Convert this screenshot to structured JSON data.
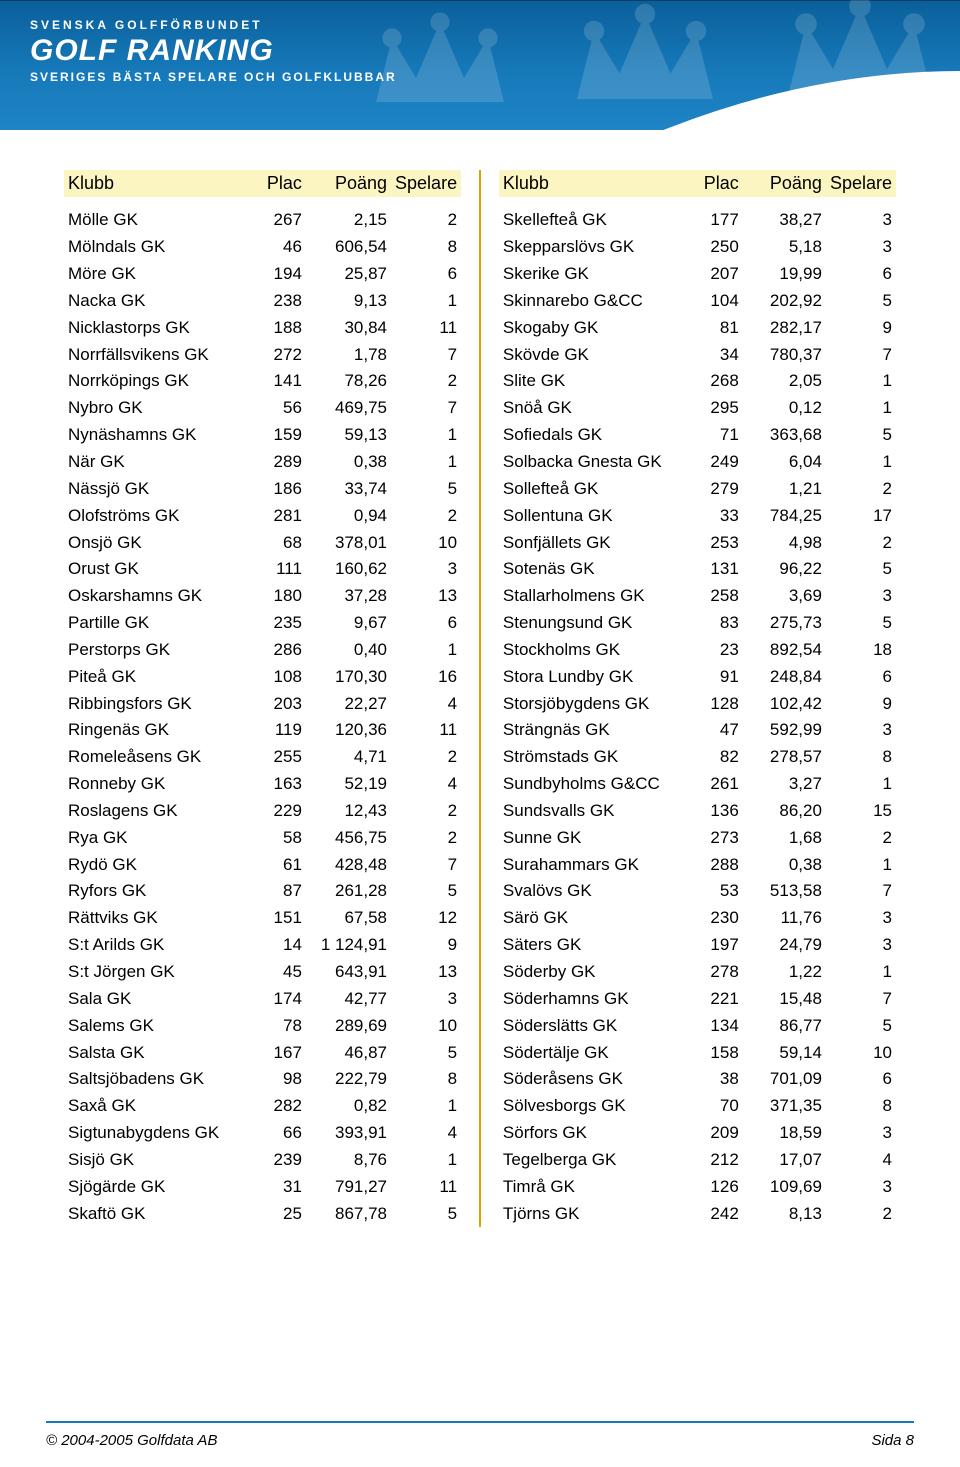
{
  "banner": {
    "subtitle_top": "SVENSKA GOLFFÖRBUNDET",
    "title": "GOLF RANKING",
    "subtitle_bottom": "SVERIGES BÄSTA SPELARE OCH GOLFKLUBBAR"
  },
  "headers": {
    "klubb": "Klubb",
    "plac": "Plac",
    "poang": "Poäng",
    "spelare": "Spelare"
  },
  "left_rows": [
    {
      "klubb": "Mölle GK",
      "plac": "267",
      "poang": "2,15",
      "spel": "2"
    },
    {
      "klubb": "Mölndals GK",
      "plac": "46",
      "poang": "606,54",
      "spel": "8"
    },
    {
      "klubb": "Möre GK",
      "plac": "194",
      "poang": "25,87",
      "spel": "6"
    },
    {
      "klubb": "Nacka GK",
      "plac": "238",
      "poang": "9,13",
      "spel": "1"
    },
    {
      "klubb": "Nicklastorps GK",
      "plac": "188",
      "poang": "30,84",
      "spel": "11"
    },
    {
      "klubb": "Norrfällsvikens GK",
      "plac": "272",
      "poang": "1,78",
      "spel": "7"
    },
    {
      "klubb": "Norrköpings GK",
      "plac": "141",
      "poang": "78,26",
      "spel": "2"
    },
    {
      "klubb": "Nybro GK",
      "plac": "56",
      "poang": "469,75",
      "spel": "7"
    },
    {
      "klubb": "Nynäshamns GK",
      "plac": "159",
      "poang": "59,13",
      "spel": "1"
    },
    {
      "klubb": "När GK",
      "plac": "289",
      "poang": "0,38",
      "spel": "1"
    },
    {
      "klubb": "Nässjö GK",
      "plac": "186",
      "poang": "33,74",
      "spel": "5"
    },
    {
      "klubb": "Olofströms GK",
      "plac": "281",
      "poang": "0,94",
      "spel": "2"
    },
    {
      "klubb": "Onsjö GK",
      "plac": "68",
      "poang": "378,01",
      "spel": "10"
    },
    {
      "klubb": "Orust GK",
      "plac": "111",
      "poang": "160,62",
      "spel": "3"
    },
    {
      "klubb": "Oskarshamns GK",
      "plac": "180",
      "poang": "37,28",
      "spel": "13"
    },
    {
      "klubb": "Partille GK",
      "plac": "235",
      "poang": "9,67",
      "spel": "6"
    },
    {
      "klubb": "Perstorps GK",
      "plac": "286",
      "poang": "0,40",
      "spel": "1"
    },
    {
      "klubb": "Piteå GK",
      "plac": "108",
      "poang": "170,30",
      "spel": "16"
    },
    {
      "klubb": "Ribbingsfors GK",
      "plac": "203",
      "poang": "22,27",
      "spel": "4"
    },
    {
      "klubb": "Ringenäs GK",
      "plac": "119",
      "poang": "120,36",
      "spel": "11"
    },
    {
      "klubb": "Romeleåsens GK",
      "plac": "255",
      "poang": "4,71",
      "spel": "2"
    },
    {
      "klubb": "Ronneby GK",
      "plac": "163",
      "poang": "52,19",
      "spel": "4"
    },
    {
      "klubb": "Roslagens GK",
      "plac": "229",
      "poang": "12,43",
      "spel": "2"
    },
    {
      "klubb": "Rya GK",
      "plac": "58",
      "poang": "456,75",
      "spel": "2"
    },
    {
      "klubb": "Rydö GK",
      "plac": "61",
      "poang": "428,48",
      "spel": "7"
    },
    {
      "klubb": "Ryfors GK",
      "plac": "87",
      "poang": "261,28",
      "spel": "5"
    },
    {
      "klubb": "Rättviks GK",
      "plac": "151",
      "poang": "67,58",
      "spel": "12"
    },
    {
      "klubb": "S:t Arilds GK",
      "plac": "14",
      "poang": "1 124,91",
      "spel": "9"
    },
    {
      "klubb": "S:t Jörgen  GK",
      "plac": "45",
      "poang": "643,91",
      "spel": "13"
    },
    {
      "klubb": "Sala GK",
      "plac": "174",
      "poang": "42,77",
      "spel": "3"
    },
    {
      "klubb": "Salems GK",
      "plac": "78",
      "poang": "289,69",
      "spel": "10"
    },
    {
      "klubb": "Salsta GK",
      "plac": "167",
      "poang": "46,87",
      "spel": "5"
    },
    {
      "klubb": "Saltsjöbadens GK",
      "plac": "98",
      "poang": "222,79",
      "spel": "8"
    },
    {
      "klubb": "Saxå GK",
      "plac": "282",
      "poang": "0,82",
      "spel": "1"
    },
    {
      "klubb": "Sigtunabygdens GK",
      "plac": "66",
      "poang": "393,91",
      "spel": "4"
    },
    {
      "klubb": "Sisjö GK",
      "plac": "239",
      "poang": "8,76",
      "spel": "1"
    },
    {
      "klubb": "Sjögärde GK",
      "plac": "31",
      "poang": "791,27",
      "spel": "11"
    },
    {
      "klubb": "Skaftö GK",
      "plac": "25",
      "poang": "867,78",
      "spel": "5"
    }
  ],
  "right_rows": [
    {
      "klubb": "Skellefteå GK",
      "plac": "177",
      "poang": "38,27",
      "spel": "3"
    },
    {
      "klubb": "Skepparslövs GK",
      "plac": "250",
      "poang": "5,18",
      "spel": "3"
    },
    {
      "klubb": "Skerike GK",
      "plac": "207",
      "poang": "19,99",
      "spel": "6"
    },
    {
      "klubb": "Skinnarebo G&CC",
      "plac": "104",
      "poang": "202,92",
      "spel": "5"
    },
    {
      "klubb": "Skogaby GK",
      "plac": "81",
      "poang": "282,17",
      "spel": "9"
    },
    {
      "klubb": "Skövde GK",
      "plac": "34",
      "poang": "780,37",
      "spel": "7"
    },
    {
      "klubb": "Slite GK",
      "plac": "268",
      "poang": "2,05",
      "spel": "1"
    },
    {
      "klubb": "Snöå GK",
      "plac": "295",
      "poang": "0,12",
      "spel": "1"
    },
    {
      "klubb": "Sofiedals GK",
      "plac": "71",
      "poang": "363,68",
      "spel": "5"
    },
    {
      "klubb": "Solbacka Gnesta GK",
      "plac": "249",
      "poang": "6,04",
      "spel": "1"
    },
    {
      "klubb": "Sollefteå GK",
      "plac": "279",
      "poang": "1,21",
      "spel": "2"
    },
    {
      "klubb": "Sollentuna GK",
      "plac": "33",
      "poang": "784,25",
      "spel": "17"
    },
    {
      "klubb": "Sonfjällets GK",
      "plac": "253",
      "poang": "4,98",
      "spel": "2"
    },
    {
      "klubb": "Sotenäs GK",
      "plac": "131",
      "poang": "96,22",
      "spel": "5"
    },
    {
      "klubb": "Stallarholmens GK",
      "plac": "258",
      "poang": "3,69",
      "spel": "3"
    },
    {
      "klubb": "Stenungsund GK",
      "plac": "83",
      "poang": "275,73",
      "spel": "5"
    },
    {
      "klubb": "Stockholms GK",
      "plac": "23",
      "poang": "892,54",
      "spel": "18"
    },
    {
      "klubb": "Stora Lundby GK",
      "plac": "91",
      "poang": "248,84",
      "spel": "6"
    },
    {
      "klubb": "Storsjöbygdens GK",
      "plac": "128",
      "poang": "102,42",
      "spel": "9"
    },
    {
      "klubb": "Strängnäs GK",
      "plac": "47",
      "poang": "592,99",
      "spel": "3"
    },
    {
      "klubb": "Strömstads GK",
      "plac": "82",
      "poang": "278,57",
      "spel": "8"
    },
    {
      "klubb": "Sundbyholms G&CC",
      "plac": "261",
      "poang": "3,27",
      "spel": "1"
    },
    {
      "klubb": "Sundsvalls GK",
      "plac": "136",
      "poang": "86,20",
      "spel": "15"
    },
    {
      "klubb": "Sunne GK",
      "plac": "273",
      "poang": "1,68",
      "spel": "2"
    },
    {
      "klubb": "Surahammars GK",
      "plac": "288",
      "poang": "0,38",
      "spel": "1"
    },
    {
      "klubb": "Svalövs GK",
      "plac": "53",
      "poang": "513,58",
      "spel": "7"
    },
    {
      "klubb": "Särö GK",
      "plac": "230",
      "poang": "11,76",
      "spel": "3"
    },
    {
      "klubb": "Säters GK",
      "plac": "197",
      "poang": "24,79",
      "spel": "3"
    },
    {
      "klubb": "Söderby GK",
      "plac": "278",
      "poang": "1,22",
      "spel": "1"
    },
    {
      "klubb": "Söderhamns GK",
      "plac": "221",
      "poang": "15,48",
      "spel": "7"
    },
    {
      "klubb": "Söderslätts GK",
      "plac": "134",
      "poang": "86,77",
      "spel": "5"
    },
    {
      "klubb": "Södertälje GK",
      "plac": "158",
      "poang": "59,14",
      "spel": "10"
    },
    {
      "klubb": "Söderåsens GK",
      "plac": "38",
      "poang": "701,09",
      "spel": "6"
    },
    {
      "klubb": "Sölvesborgs GK",
      "plac": "70",
      "poang": "371,35",
      "spel": "8"
    },
    {
      "klubb": "Sörfors GK",
      "plac": "209",
      "poang": "18,59",
      "spel": "3"
    },
    {
      "klubb": "Tegelberga GK",
      "plac": "212",
      "poang": "17,07",
      "spel": "4"
    },
    {
      "klubb": "Timrå GK",
      "plac": "126",
      "poang": "109,69",
      "spel": "3"
    },
    {
      "klubb": "Tjörns GK",
      "plac": "242",
      "poang": "8,13",
      "spel": "2"
    }
  ],
  "footer": {
    "copyright": "© 2004-2005 Golfdata AB",
    "page": "Sida 8"
  },
  "style": {
    "page_size": "960x1467",
    "font_family": "Arial",
    "body_fontsize_pt": 13,
    "header_bg": "#fbf5c2",
    "divider_color": "#e3a100",
    "banner_gradient": [
      "#0a5f9a",
      "#1e84c6"
    ],
    "rule_color": "#1679b9",
    "columns": [
      "Klubb",
      "Plac",
      "Poäng",
      "Spelare"
    ],
    "col_align": [
      "left",
      "right",
      "right",
      "right"
    ],
    "col_width_pct": [
      52,
      11,
      22,
      15
    ]
  }
}
